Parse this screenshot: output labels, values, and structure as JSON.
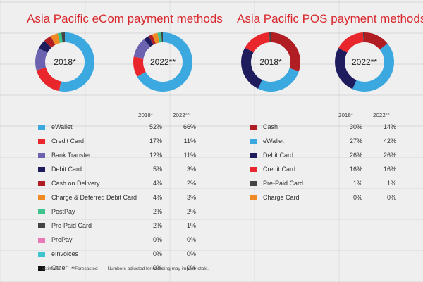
{
  "chart_data": [
    {
      "type": "pie",
      "title": "Asia Pacific eCom payment methods",
      "year_labels": [
        "2018*",
        "2022**"
      ],
      "categories": [
        "eWallet",
        "Credit Card",
        "Bank Transfer",
        "Debit Card",
        "Cash on Delivery",
        "Charge & Deferred Debit Card",
        "PostPay",
        "Pre-Paid Card",
        "PrePay",
        "eInvoices",
        "Other"
      ],
      "colors": [
        "#3ca8e0",
        "#e8262c",
        "#6b62b0",
        "#1f1c5e",
        "#b01e24",
        "#f08a24",
        "#3cc48c",
        "#444444",
        "#e87ab8",
        "#3cc4d0",
        "#111111"
      ],
      "series": [
        {
          "name": "2018*",
          "values": [
            52,
            17,
            12,
            5,
            4,
            4,
            2,
            2,
            0,
            0,
            0
          ],
          "labels": [
            "52%",
            "17%",
            "12%",
            "5%",
            "4%",
            "4%",
            "2%",
            "2%",
            "0%",
            "0%",
            "0%"
          ]
        },
        {
          "name": "2022**",
          "values": [
            66,
            11,
            11,
            3,
            2,
            3,
            2,
            1,
            0,
            0,
            0
          ],
          "labels": [
            "66%",
            "11%",
            "11%",
            "3%",
            "2%",
            "3%",
            "2%",
            "1%",
            "0%",
            "0%",
            "0%"
          ]
        }
      ]
    },
    {
      "type": "pie",
      "title": "Asia Pacific POS payment methods",
      "year_labels": [
        "2018*",
        "2022**"
      ],
      "categories": [
        "Cash",
        "eWallet",
        "Debit Card",
        "Credit Card",
        "Pre-Paid Card",
        "Charge Card"
      ],
      "colors": [
        "#b01e24",
        "#3ca8e0",
        "#1f1c5e",
        "#e8262c",
        "#444444",
        "#f08a24"
      ],
      "series": [
        {
          "name": "2018*",
          "values": [
            30,
            27,
            26,
            16,
            1,
            0
          ],
          "labels": [
            "30%",
            "27%",
            "26%",
            "16%",
            "1%",
            "0%"
          ]
        },
        {
          "name": "2022**",
          "values": [
            14,
            42,
            26,
            16,
            1,
            0
          ],
          "labels": [
            "14%",
            "42%",
            "26%",
            "16%",
            "1%",
            "0%"
          ]
        }
      ]
    }
  ],
  "footer": {
    "estimated": "* Estimated",
    "forecasted": "**Forecasted",
    "note": "Numbers adjusted for rounding may impact totals."
  }
}
